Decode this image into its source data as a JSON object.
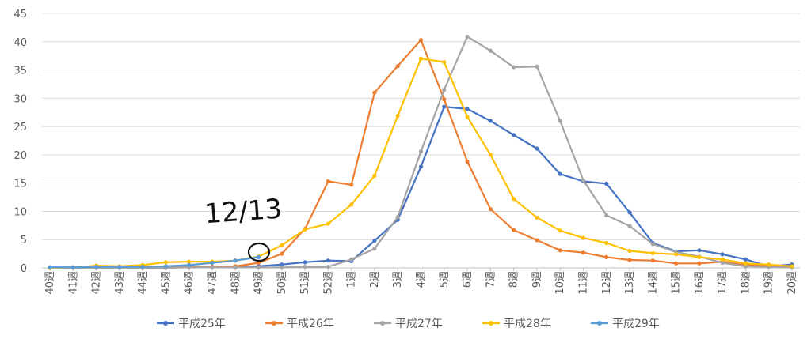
{
  "chart_data": {
    "type": "line",
    "categories": [
      "40週",
      "41週",
      "42週",
      "43週",
      "44週",
      "45週",
      "46週",
      "47週",
      "48週",
      "49週",
      "50週",
      "51週",
      "52週",
      "1週",
      "2週",
      "3週",
      "4週",
      "5週",
      "6週",
      "7週",
      "8週",
      "9週",
      "10週",
      "11週",
      "12週",
      "13週",
      "14週",
      "15週",
      "16週",
      "17週",
      "18週",
      "19週",
      "20週"
    ],
    "ylim": [
      0,
      45
    ],
    "yticks": [
      0,
      5,
      10,
      15,
      20,
      25,
      30,
      35,
      40,
      45
    ],
    "grid": true,
    "legend_position": "bottom",
    "series": [
      {
        "name": "平成25年",
        "color": "#4472C4",
        "values": [
          0.1,
          0.1,
          0.1,
          0.1,
          0.1,
          0.1,
          0.2,
          0.2,
          0.2,
          0.3,
          0.6,
          1.0,
          1.3,
          1.2,
          4.8,
          8.5,
          17.9,
          28.5,
          28.1,
          26.0,
          23.5,
          21.1,
          16.6,
          15.3,
          14.9,
          9.8,
          4.4,
          2.9,
          3.1,
          2.4,
          1.5,
          0.3,
          0.6
        ]
      },
      {
        "name": "平成26年",
        "color": "#ED7D31",
        "values": [
          0.0,
          0.0,
          0.0,
          0.1,
          0.1,
          0.1,
          0.2,
          0.2,
          0.3,
          0.9,
          2.5,
          6.9,
          15.3,
          14.7,
          31.0,
          35.7,
          40.3,
          29.8,
          18.8,
          10.4,
          6.7,
          4.9,
          3.1,
          2.7,
          1.9,
          1.4,
          1.3,
          0.8,
          0.8,
          1.1,
          0.5,
          0.3,
          0.2
        ]
      },
      {
        "name": "平成27年",
        "color": "#A5A5A5",
        "values": [
          0.0,
          0.0,
          0.0,
          0.0,
          0.0,
          0.0,
          0.1,
          0.1,
          0.1,
          0.1,
          0.1,
          0.2,
          0.2,
          1.5,
          3.4,
          9.0,
          20.6,
          31.5,
          40.9,
          38.4,
          35.5,
          35.6,
          26.0,
          15.5,
          9.3,
          7.4,
          4.2,
          2.8,
          2.0,
          0.9,
          0.3,
          0.2,
          0.1
        ]
      },
      {
        "name": "平成28年",
        "color": "#FFC000",
        "values": [
          0.0,
          0.1,
          0.4,
          0.3,
          0.5,
          1.0,
          1.1,
          1.1,
          1.3,
          2.0,
          4.0,
          6.8,
          7.8,
          11.2,
          16.3,
          26.9,
          37.0,
          36.4,
          26.7,
          20.0,
          12.2,
          8.9,
          6.6,
          5.3,
          4.4,
          3.0,
          2.6,
          2.4,
          1.9,
          1.5,
          0.8,
          0.6,
          0.3
        ]
      },
      {
        "name": "平成29年",
        "color": "#5B9BD5",
        "values": [
          0.1,
          0.1,
          0.2,
          0.2,
          0.2,
          0.3,
          0.5,
          0.9,
          1.3,
          1.9,
          null,
          null,
          null,
          null,
          null,
          null,
          null,
          null,
          null,
          null,
          null,
          null,
          null,
          null,
          null,
          null,
          null,
          null,
          null,
          null,
          null,
          null,
          null
        ]
      }
    ],
    "annotation_text": "12/13"
  }
}
